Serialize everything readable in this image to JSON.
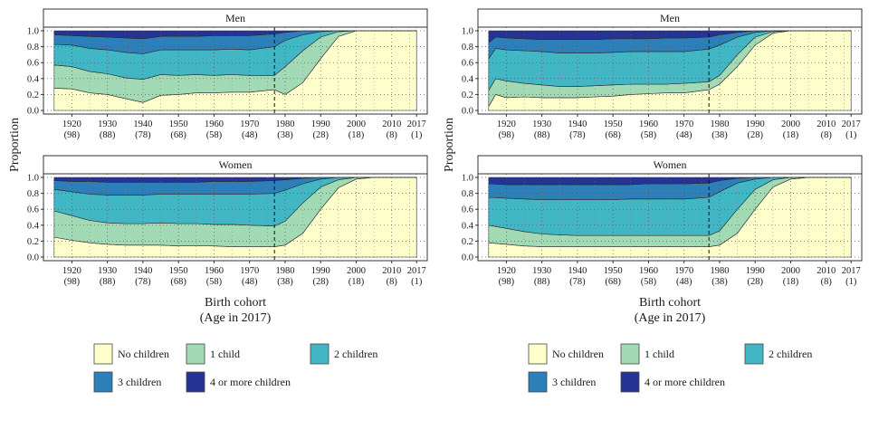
{
  "figures": [
    {
      "ylabel": "Proportion",
      "xlabel": "Birth cohort",
      "xlabel_sub": "(Age in 2017)",
      "panels": [
        {
          "strip": "Men"
        },
        {
          "strip": "Women"
        }
      ]
    },
    {
      "ylabel": "Proportion",
      "xlabel": "Birth cohort",
      "xlabel_sub": "(Age in 2017)",
      "panels": [
        {
          "strip": "Men"
        },
        {
          "strip": "Women"
        }
      ]
    }
  ],
  "legend": {
    "items": [
      {
        "label": "No children",
        "color": "#ffffcc"
      },
      {
        "label": "1 child",
        "color": "#a1dab4"
      },
      {
        "label": "2 children",
        "color": "#41b6c4"
      },
      {
        "label": "3 children",
        "color": "#2c7fb8"
      },
      {
        "label": "4 or more children",
        "color": "#253494"
      }
    ]
  },
  "chart_data": [
    {
      "type": "area",
      "stacked": true,
      "panel": "Men",
      "figure": 1,
      "x": [
        1915,
        1920,
        1925,
        1930,
        1935,
        1940,
        1945,
        1950,
        1955,
        1960,
        1965,
        1970,
        1977,
        1980,
        1985,
        1990,
        1995,
        2000,
        2005,
        2010,
        2017
      ],
      "tick_labels": [
        "1920",
        "1930",
        "1940",
        "1950",
        "1960",
        "1970",
        "1980",
        "1990",
        "2000",
        "2010",
        "2017"
      ],
      "tick_sublabels": [
        "(98)",
        "(88)",
        "(78)",
        "(68)",
        "(58)",
        "(48)",
        "(38)",
        "(28)",
        "(18)",
        "(8)",
        "(1)"
      ],
      "tick_values": [
        1920,
        1930,
        1940,
        1950,
        1960,
        1970,
        1980,
        1990,
        2000,
        2010,
        2017
      ],
      "y_ticks": [
        "0.0",
        "0.2",
        "0.4",
        "0.6",
        "0.8",
        "1.0"
      ],
      "ylim": [
        0,
        1
      ],
      "xlim": [
        1912,
        2020
      ],
      "reference_line_x": 1977,
      "cumulative_boundaries": {
        "No children": [
          0.28,
          0.27,
          0.22,
          0.2,
          0.15,
          0.1,
          0.19,
          0.2,
          0.22,
          0.22,
          0.23,
          0.23,
          0.26,
          0.2,
          0.35,
          0.65,
          0.93,
          1.0,
          1.0,
          1.0,
          1.0
        ],
        "1 child": [
          0.57,
          0.55,
          0.49,
          0.46,
          0.41,
          0.39,
          0.45,
          0.44,
          0.45,
          0.44,
          0.45,
          0.44,
          0.44,
          0.55,
          0.75,
          0.92,
          0.99,
          1.0,
          1.0,
          1.0,
          1.0
        ],
        "2 children": [
          0.83,
          0.82,
          0.78,
          0.76,
          0.73,
          0.71,
          0.76,
          0.76,
          0.76,
          0.76,
          0.77,
          0.76,
          0.8,
          0.88,
          0.95,
          0.99,
          1.0,
          1.0,
          1.0,
          1.0,
          1.0
        ],
        "3 children": [
          0.95,
          0.94,
          0.93,
          0.92,
          0.91,
          0.9,
          0.93,
          0.93,
          0.93,
          0.94,
          0.94,
          0.94,
          0.96,
          0.98,
          1.0,
          1.0,
          1.0,
          1.0,
          1.0,
          1.0,
          1.0
        ],
        "4 or more children": [
          1.0,
          1.0,
          1.0,
          1.0,
          1.0,
          1.0,
          1.0,
          1.0,
          1.0,
          1.0,
          1.0,
          1.0,
          1.0,
          1.0,
          1.0,
          1.0,
          1.0,
          1.0,
          1.0,
          1.0,
          1.0
        ]
      }
    },
    {
      "type": "area",
      "stacked": true,
      "panel": "Women",
      "figure": 1,
      "x": [
        1915,
        1920,
        1925,
        1930,
        1935,
        1940,
        1945,
        1950,
        1955,
        1960,
        1965,
        1970,
        1977,
        1980,
        1985,
        1990,
        1995,
        2000,
        2005,
        2010,
        2017
      ],
      "tick_labels": [
        "1920",
        "1930",
        "1940",
        "1950",
        "1960",
        "1970",
        "1980",
        "1990",
        "2000",
        "2010",
        "2017"
      ],
      "tick_sublabels": [
        "(98)",
        "(88)",
        "(78)",
        "(68)",
        "(58)",
        "(48)",
        "(38)",
        "(28)",
        "(18)",
        "(8)",
        "(1)"
      ],
      "tick_values": [
        1920,
        1930,
        1940,
        1950,
        1960,
        1970,
        1980,
        1990,
        2000,
        2010,
        2017
      ],
      "y_ticks": [
        "0.0",
        "0.2",
        "0.4",
        "0.6",
        "0.8",
        "1.0"
      ],
      "ylim": [
        0,
        1
      ],
      "xlim": [
        1912,
        2020
      ],
      "reference_line_x": 1977,
      "cumulative_boundaries": {
        "No children": [
          0.25,
          0.21,
          0.18,
          0.16,
          0.15,
          0.15,
          0.15,
          0.14,
          0.14,
          0.14,
          0.13,
          0.13,
          0.13,
          0.15,
          0.3,
          0.6,
          0.87,
          0.98,
          1.0,
          1.0,
          1.0
        ],
        "1 child": [
          0.58,
          0.52,
          0.46,
          0.43,
          0.42,
          0.42,
          0.43,
          0.42,
          0.42,
          0.41,
          0.41,
          0.4,
          0.39,
          0.45,
          0.68,
          0.88,
          0.97,
          1.0,
          1.0,
          1.0,
          1.0
        ],
        "2 children": [
          0.85,
          0.82,
          0.79,
          0.78,
          0.78,
          0.78,
          0.79,
          0.79,
          0.79,
          0.79,
          0.79,
          0.79,
          0.8,
          0.84,
          0.92,
          0.98,
          1.0,
          1.0,
          1.0,
          1.0,
          1.0
        ],
        "3 children": [
          0.96,
          0.95,
          0.95,
          0.94,
          0.94,
          0.94,
          0.94,
          0.94,
          0.94,
          0.95,
          0.95,
          0.95,
          0.96,
          0.97,
          0.99,
          1.0,
          1.0,
          1.0,
          1.0,
          1.0,
          1.0
        ],
        "4 or more children": [
          1.0,
          1.0,
          1.0,
          1.0,
          1.0,
          1.0,
          1.0,
          1.0,
          1.0,
          1.0,
          1.0,
          1.0,
          1.0,
          1.0,
          1.0,
          1.0,
          1.0,
          1.0,
          1.0,
          1.0,
          1.0
        ]
      }
    },
    {
      "type": "area",
      "stacked": true,
      "panel": "Men",
      "figure": 2,
      "x": [
        1915,
        1917,
        1920,
        1925,
        1930,
        1935,
        1940,
        1945,
        1950,
        1955,
        1960,
        1965,
        1970,
        1977,
        1980,
        1985,
        1990,
        1995,
        2000,
        2005,
        2010,
        2017
      ],
      "tick_labels": [
        "1920",
        "1930",
        "1940",
        "1950",
        "1960",
        "1970",
        "1980",
        "1990",
        "2000",
        "2010",
        "2017"
      ],
      "tick_sublabels": [
        "(98)",
        "(88)",
        "(78)",
        "(68)",
        "(58)",
        "(48)",
        "(38)",
        "(28)",
        "(18)",
        "(8)",
        "(1)"
      ],
      "tick_values": [
        1920,
        1930,
        1940,
        1950,
        1960,
        1970,
        1980,
        1990,
        2000,
        2010,
        2017
      ],
      "y_ticks": [
        "0.0",
        "0.2",
        "0.4",
        "0.6",
        "0.8",
        "1.0"
      ],
      "ylim": [
        0,
        1
      ],
      "xlim": [
        1912,
        2020
      ],
      "reference_line_x": 1977,
      "cumulative_boundaries": {
        "No children": [
          0.05,
          0.2,
          0.16,
          0.17,
          0.16,
          0.16,
          0.16,
          0.17,
          0.18,
          0.2,
          0.21,
          0.22,
          0.22,
          0.26,
          0.33,
          0.55,
          0.82,
          0.97,
          1.0,
          1.0,
          1.0,
          1.0
        ],
        "1 child": [
          0.25,
          0.4,
          0.37,
          0.34,
          0.32,
          0.3,
          0.3,
          0.31,
          0.32,
          0.33,
          0.33,
          0.33,
          0.34,
          0.36,
          0.44,
          0.7,
          0.92,
          0.99,
          1.0,
          1.0,
          1.0,
          1.0
        ],
        "2 children": [
          0.65,
          0.78,
          0.76,
          0.75,
          0.74,
          0.72,
          0.72,
          0.72,
          0.73,
          0.74,
          0.74,
          0.74,
          0.74,
          0.77,
          0.82,
          0.92,
          0.98,
          1.0,
          1.0,
          1.0,
          1.0,
          1.0
        ],
        "3 children": [
          0.85,
          0.92,
          0.91,
          0.9,
          0.89,
          0.89,
          0.89,
          0.89,
          0.9,
          0.9,
          0.9,
          0.91,
          0.91,
          0.92,
          0.95,
          0.98,
          1.0,
          1.0,
          1.0,
          1.0,
          1.0,
          1.0
        ],
        "4 or more children": [
          1.0,
          1.0,
          1.0,
          1.0,
          1.0,
          1.0,
          1.0,
          1.0,
          1.0,
          1.0,
          1.0,
          1.0,
          1.0,
          1.0,
          1.0,
          1.0,
          1.0,
          1.0,
          1.0,
          1.0,
          1.0,
          1.0
        ]
      }
    },
    {
      "type": "area",
      "stacked": true,
      "panel": "Women",
      "figure": 2,
      "x": [
        1915,
        1920,
        1925,
        1930,
        1935,
        1940,
        1945,
        1950,
        1955,
        1960,
        1965,
        1970,
        1977,
        1980,
        1985,
        1990,
        1995,
        2000,
        2005,
        2010,
        2017
      ],
      "tick_labels": [
        "1920",
        "1930",
        "1940",
        "1950",
        "1960",
        "1970",
        "1980",
        "1990",
        "2000",
        "2010",
        "2017"
      ],
      "tick_sublabels": [
        "(98)",
        "(88)",
        "(78)",
        "(68)",
        "(58)",
        "(48)",
        "(38)",
        "(28)",
        "(18)",
        "(8)",
        "(1)"
      ],
      "tick_values": [
        1920,
        1930,
        1940,
        1950,
        1960,
        1970,
        1980,
        1990,
        2000,
        2010,
        2017
      ],
      "y_ticks": [
        "0.0",
        "0.2",
        "0.4",
        "0.6",
        "0.8",
        "1.0"
      ],
      "ylim": [
        0,
        1
      ],
      "xlim": [
        1912,
        2020
      ],
      "reference_line_x": 1977,
      "cumulative_boundaries": {
        "No children": [
          0.18,
          0.16,
          0.14,
          0.13,
          0.13,
          0.13,
          0.13,
          0.13,
          0.13,
          0.13,
          0.13,
          0.13,
          0.13,
          0.15,
          0.3,
          0.6,
          0.88,
          0.98,
          1.0,
          1.0,
          1.0
        ],
        "1 child": [
          0.4,
          0.36,
          0.32,
          0.29,
          0.28,
          0.27,
          0.27,
          0.27,
          0.27,
          0.27,
          0.27,
          0.27,
          0.27,
          0.33,
          0.6,
          0.85,
          0.97,
          1.0,
          1.0,
          1.0,
          1.0
        ],
        "2 children": [
          0.75,
          0.74,
          0.73,
          0.72,
          0.72,
          0.72,
          0.72,
          0.72,
          0.73,
          0.73,
          0.73,
          0.73,
          0.75,
          0.82,
          0.93,
          0.98,
          1.0,
          1.0,
          1.0,
          1.0,
          1.0
        ],
        "3 children": [
          0.92,
          0.91,
          0.91,
          0.91,
          0.91,
          0.91,
          0.91,
          0.91,
          0.91,
          0.92,
          0.92,
          0.92,
          0.93,
          0.96,
          0.99,
          1.0,
          1.0,
          1.0,
          1.0,
          1.0,
          1.0
        ],
        "4 or more children": [
          1.0,
          1.0,
          1.0,
          1.0,
          1.0,
          1.0,
          1.0,
          1.0,
          1.0,
          1.0,
          1.0,
          1.0,
          1.0,
          1.0,
          1.0,
          1.0,
          1.0,
          1.0,
          1.0,
          1.0,
          1.0
        ]
      }
    }
  ]
}
